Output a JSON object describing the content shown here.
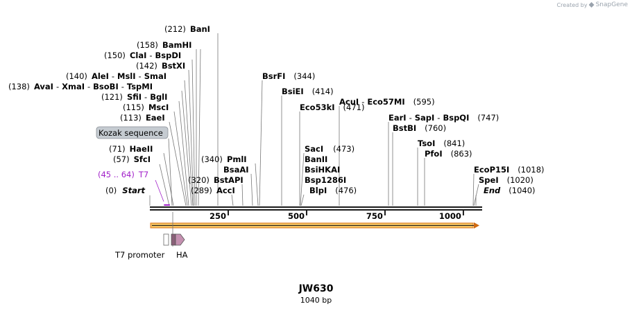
{
  "credit": {
    "prefix": "Created by",
    "brand": "SnapGene"
  },
  "sequence": {
    "name": "JW630",
    "length_label": "1040 bp",
    "length_bp": 1040
  },
  "colors": {
    "backbone": "#1a1a1a",
    "orf_fill": "#e8c060",
    "orf_border": "#e07a1f",
    "t7_feature": "#a11fc9",
    "ha_fill": "#c490b0"
  },
  "axis": {
    "ticks": [
      {
        "label": "250",
        "bp": 250
      },
      {
        "label": "500",
        "bp": 500
      },
      {
        "label": "750",
        "bp": 750
      },
      {
        "label": "1000",
        "bp": 1000
      }
    ]
  },
  "start_label": {
    "pos": "(0)",
    "name": "Start"
  },
  "end_label": {
    "name": "End",
    "pos": "(1040)"
  },
  "kozak_label": "Kozak sequence",
  "t7_feature": {
    "pos": "(45 .. 64)",
    "name": "T7",
    "start_bp": 45,
    "end_bp": 64
  },
  "enzymes": [
    {
      "pos": "(71)",
      "items": [
        "HaeII"
      ]
    },
    {
      "pos": "(57)",
      "items": [
        "SfcI"
      ]
    },
    {
      "pos": "(113)",
      "items": [
        "EaeI"
      ]
    },
    {
      "pos": "(115)",
      "items": [
        "MscI"
      ]
    },
    {
      "pos": "(121)",
      "items": [
        "SfiI",
        "BglI"
      ]
    },
    {
      "pos": "(138)",
      "items": [
        "AvaI",
        "XmaI",
        "BsoBI",
        "TspMI"
      ]
    },
    {
      "pos": "(140)",
      "items": [
        "AleI",
        "MslI",
        "SmaI"
      ]
    },
    {
      "pos": "(142)",
      "items": [
        "BstXI"
      ]
    },
    {
      "pos": "(150)",
      "items": [
        "ClaI",
        "BspDI"
      ]
    },
    {
      "pos": "(158)",
      "items": [
        "BamHI"
      ]
    },
    {
      "pos": "(212)",
      "items": [
        "BanI"
      ]
    },
    {
      "pos": "(289)",
      "items": [
        "AccI"
      ]
    },
    {
      "pos": "(320)",
      "items": [
        "BstAPI"
      ]
    },
    {
      "pos": "",
      "items": [
        "BsaAI"
      ]
    },
    {
      "pos": "(340)",
      "items": [
        "PmlI"
      ]
    },
    {
      "pos": "(344)",
      "items": [
        "BsrFI"
      ]
    },
    {
      "pos": "(414)",
      "items": [
        "BsiEI"
      ]
    },
    {
      "pos": "(471)",
      "items": [
        "Eco53kI"
      ]
    },
    {
      "pos": "(473)",
      "items": [
        "SacI"
      ]
    },
    {
      "pos": "",
      "items": [
        "BanII"
      ]
    },
    {
      "pos": "",
      "items": [
        "BsiHKAI"
      ]
    },
    {
      "pos": "",
      "items": [
        "Bsp1286I"
      ]
    },
    {
      "pos": "(476)",
      "items": [
        "BlpI"
      ]
    },
    {
      "pos": "(595)",
      "items": [
        "AcuI",
        "Eco57MI"
      ]
    },
    {
      "pos": "(747)",
      "items": [
        "EarI",
        "SapI",
        "BspQI"
      ]
    },
    {
      "pos": "(760)",
      "items": [
        "BstBI"
      ]
    },
    {
      "pos": "(841)",
      "items": [
        "TsoI"
      ]
    },
    {
      "pos": "(863)",
      "items": [
        "PfoI"
      ]
    },
    {
      "pos": "(1018)",
      "items": [
        "EcoP15I"
      ]
    },
    {
      "pos": "(1020)",
      "items": [
        "SpeI"
      ]
    }
  ],
  "features": [
    {
      "name": "T7 promoter"
    },
    {
      "name": "HA"
    }
  ]
}
